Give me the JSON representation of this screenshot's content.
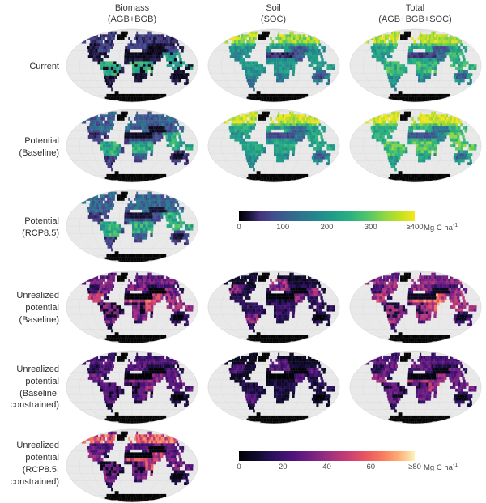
{
  "columns": [
    {
      "id": "biomass",
      "label": "Biomass\n(AGB+BGB)"
    },
    {
      "id": "soil",
      "label": "Soil\n(SOC)"
    },
    {
      "id": "total",
      "label": "Total\n(AGB+BGB+SOC)"
    }
  ],
  "rows": [
    {
      "id": "current",
      "label": "Current"
    },
    {
      "id": "potential-baseline",
      "label": "Potential\n(Baseline)"
    },
    {
      "id": "potential-rcp85",
      "label": "Potential\n(RCP8.5)"
    },
    {
      "id": "unrealized-baseline",
      "label": "Unrealized\npotential\n(Baseline)"
    },
    {
      "id": "unrealized-baseline-constrained",
      "label": "Unrealized\npotential\n(Baseline;\nconstrained)"
    },
    {
      "id": "unrealized-rcp85-constrained",
      "label": "Unrealized\npotential\n(RCP8.5;\nconstrained)"
    }
  ],
  "colorbars": [
    {
      "id": "carbon-stock",
      "ticks": [
        "0",
        "100",
        "200",
        "300",
        "≥400"
      ],
      "unit_base": "Mg C ha",
      "unit_sup": "-1",
      "gradient": [
        [
          0,
          "#000000"
        ],
        [
          0.05,
          "#120f2c"
        ],
        [
          0.12,
          "#46327e"
        ],
        [
          0.2,
          "#41508f"
        ],
        [
          0.3,
          "#33688e"
        ],
        [
          0.42,
          "#25838e"
        ],
        [
          0.52,
          "#1f9a8a"
        ],
        [
          0.63,
          "#2ab07f"
        ],
        [
          0.73,
          "#50c46a"
        ],
        [
          0.83,
          "#8fd744"
        ],
        [
          0.92,
          "#c5e021"
        ],
        [
          1,
          "#f4e61e"
        ]
      ]
    },
    {
      "id": "unrealized-potential",
      "ticks": [
        "0",
        "20",
        "40",
        "60",
        "≥80"
      ],
      "unit_base": "Mg C ha",
      "unit_sup": "-1",
      "gradient": [
        [
          0,
          "#000004"
        ],
        [
          0.1,
          "#100b2d"
        ],
        [
          0.2,
          "#2c115f"
        ],
        [
          0.31,
          "#51127c"
        ],
        [
          0.42,
          "#782282"
        ],
        [
          0.52,
          "#a1307e"
        ],
        [
          0.62,
          "#c83e73"
        ],
        [
          0.72,
          "#e95562"
        ],
        [
          0.82,
          "#f97c5d"
        ],
        [
          0.9,
          "#fea873"
        ],
        [
          0.96,
          "#fdd39a"
        ],
        [
          1,
          "#fcf5b8"
        ]
      ]
    }
  ],
  "map": {
    "ocean": "#e9e9e9",
    "grid": "#d5d5d5",
    "outline": "#d0d0d0",
    "nodata": "#040404",
    "land_mask": [
      "..................................................",
      "........######...GGGGG......#.......###...........",
      "..###.#########.GGGGGG.....#################.##...",
      ".##########.####.GGGG..#..######################..",
      ".##..######.####........#..####################...",
      "......###########......#####################.#....",
      "......###########.....######################.##...",
      ".......#########......##.....###############.#....",
      "........#######.......######################......",
      "........#####.##......###############.####.#......",
      "..........####........##############..####.#......",
      "............#######...############.....######.....",
      ".............########....########.....##.###.###..",
      ".............#########...########.......###..###..",
      "..............########...######.#........####.....",
      "..............######.....######.#.......#######...",
      "..............#####.......#####.........#######...",
      "..............####........###............####..#..",
      "..............###..........................#...##.",
      "..............##..................................",
      "...............#..................................",
      "................AA................................",
      "..........AAAAAAAAAAAAAAAAAAAAAAAAAAAAAAAAAAA.....",
      "......AAAAAAAAAAAAAAAAAAAAAAAAAAAAAAAAAAAAAAAAA...",
      "............AAAAAAAAAAAAAAAAAAAAAAAAAAAAA........."
    ]
  },
  "panels": [
    {
      "name": "current-biomass",
      "scheme": "bioCur",
      "cmap": 0,
      "seed": 1,
      "f": 1,
      "boost": 0
    },
    {
      "name": "current-soil",
      "scheme": "soilCur",
      "cmap": 0,
      "seed": 2,
      "f": 1,
      "boost": 0
    },
    {
      "name": "current-total",
      "scheme": "totCur",
      "cmap": 0,
      "seed": 3,
      "f": 1,
      "boost": 0
    },
    {
      "name": "potential-baseline-biomass",
      "scheme": "bioPot",
      "cmap": 0,
      "seed": 4,
      "f": 1,
      "boost": 0
    },
    {
      "name": "potential-baseline-soil",
      "scheme": "soilCur",
      "cmap": 0,
      "seed": 5,
      "f": 1,
      "boost": 0.07
    },
    {
      "name": "potential-baseline-total",
      "scheme": "totCur",
      "cmap": 0,
      "seed": 6,
      "f": 1,
      "boost": 0.07
    },
    {
      "name": "potential-rcp85-biomass",
      "scheme": "bioPot",
      "cmap": 0,
      "seed": 7,
      "f": 1,
      "boost": 0.02
    },
    {
      "name": "unrealized-baseline-biomass",
      "scheme": "unrBio",
      "cmap": 1,
      "seed": 8,
      "f": 1,
      "boost": 0
    },
    {
      "name": "unrealized-baseline-soil",
      "scheme": "unrSoil",
      "cmap": 1,
      "seed": 9,
      "f": 1,
      "boost": 0
    },
    {
      "name": "unrealized-baseline-total",
      "scheme": "unrBio",
      "cmap": 1,
      "seed": 10,
      "f": 1,
      "boost": 0.05
    },
    {
      "name": "unrealized-constrained-biomass",
      "scheme": "unrBio",
      "cmap": 1,
      "seed": 11,
      "f": 0.72,
      "boost": 0
    },
    {
      "name": "unrealized-constrained-soil",
      "scheme": "unrSoil",
      "cmap": 1,
      "seed": 12,
      "f": 0.7,
      "boost": 0
    },
    {
      "name": "unrealized-constrained-total",
      "scheme": "unrBio",
      "cmap": 1,
      "seed": 13,
      "f": 0.75,
      "boost": 0.03
    },
    {
      "name": "unrealized-rcp85-biomass",
      "scheme": "unrRcp",
      "cmap": 1,
      "seed": 14,
      "f": 1,
      "boost": 0
    }
  ]
}
